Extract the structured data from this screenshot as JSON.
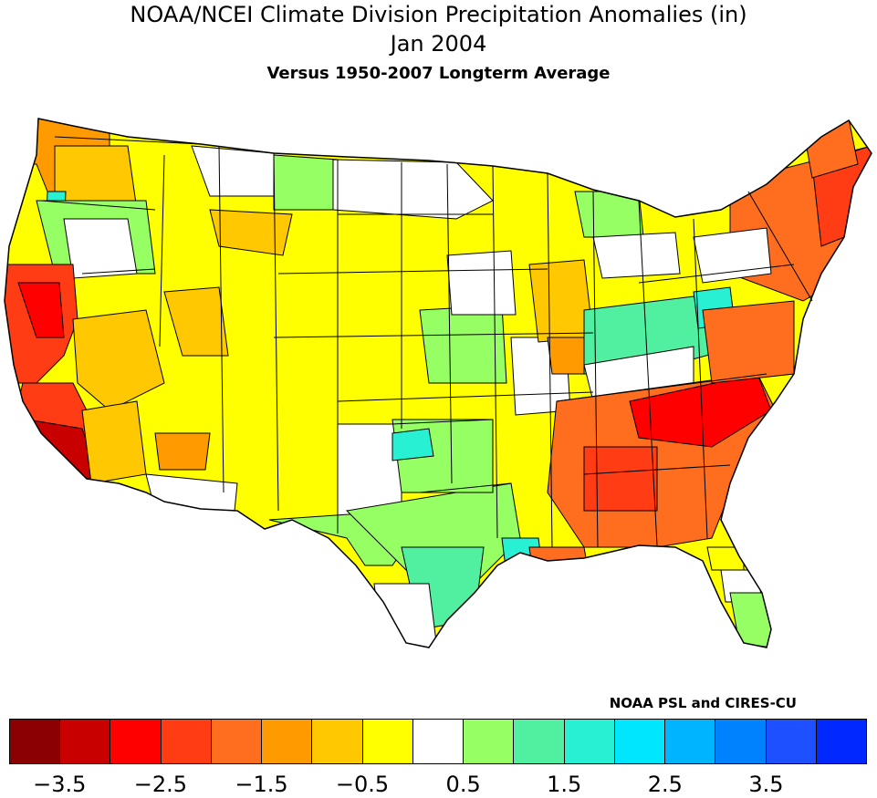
{
  "title": {
    "line1": "NOAA/NCEI Climate Division Precipitation Anomalies (in)",
    "line2": "Jan 2004",
    "line3": "Versus 1950-2007 Longterm Average"
  },
  "credit": "NOAA PSL and CIRES-CU",
  "legend": {
    "bins": [
      {
        "min": null,
        "max": -3.5,
        "color": "#8b0000"
      },
      {
        "min": -3.5,
        "max": -3.0,
        "color": "#c80000"
      },
      {
        "min": -3.0,
        "max": -2.5,
        "color": "#ff0000"
      },
      {
        "min": -2.5,
        "max": -2.0,
        "color": "#ff3c14"
      },
      {
        "min": -2.0,
        "max": -1.5,
        "color": "#ff6e1e"
      },
      {
        "min": -1.5,
        "max": -1.0,
        "color": "#ff9b00"
      },
      {
        "min": -1.0,
        "max": -0.5,
        "color": "#ffc800"
      },
      {
        "min": -0.5,
        "max": 0.0,
        "color": "#ffff00"
      },
      {
        "min": 0.0,
        "max": 0.5,
        "color": "#ffffff"
      },
      {
        "min": 0.5,
        "max": 1.0,
        "color": "#96ff64"
      },
      {
        "min": 1.0,
        "max": 1.5,
        "color": "#50f0a0"
      },
      {
        "min": 1.5,
        "max": 2.0,
        "color": "#28f0d2"
      },
      {
        "min": 2.0,
        "max": 2.5,
        "color": "#00e6ff"
      },
      {
        "min": 2.5,
        "max": 3.0,
        "color": "#00b4ff"
      },
      {
        "min": 3.0,
        "max": 3.5,
        "color": "#0082ff"
      },
      {
        "min": 3.5,
        "max": null,
        "color": "#1e50ff"
      },
      {
        "min": null,
        "max": null,
        "color": "#0028ff"
      }
    ],
    "tick_labels": [
      "-3.5",
      "-2.5",
      "-1.5",
      "-0.5",
      "0.5",
      "1.5",
      "2.5",
      "3.5"
    ]
  },
  "regions": [
    {
      "name": "pacific-nw-coast",
      "anomaly": -1.5
    },
    {
      "name": "washington-interior",
      "anomaly": -0.5
    },
    {
      "name": "oregon-cascades",
      "anomaly": 2.0
    },
    {
      "name": "idaho-montana",
      "anomaly": -0.5
    },
    {
      "name": "montana-central",
      "anomaly": 0.5
    },
    {
      "name": "california-north",
      "anomaly": -3.0
    },
    {
      "name": "california-south",
      "anomaly": -3.5
    },
    {
      "name": "nevada",
      "anomaly": -0.5
    },
    {
      "name": "arizona-west",
      "anomaly": -1.0
    },
    {
      "name": "rockies",
      "anomaly": -0.5
    },
    {
      "name": "great-plains",
      "anomaly": -0.5
    },
    {
      "name": "texas",
      "anomaly": 0.5
    },
    {
      "name": "texas-east",
      "anomaly": 1.0
    },
    {
      "name": "midwest",
      "anomaly": -0.5
    },
    {
      "name": "ohio-valley",
      "anomaly": 1.5
    },
    {
      "name": "southeast",
      "anomaly": -2.0
    },
    {
      "name": "carolinas-georgia",
      "anomaly": -3.0
    },
    {
      "name": "new-england",
      "anomaly": -2.0
    },
    {
      "name": "florida-south",
      "anomaly": 0.5
    }
  ]
}
